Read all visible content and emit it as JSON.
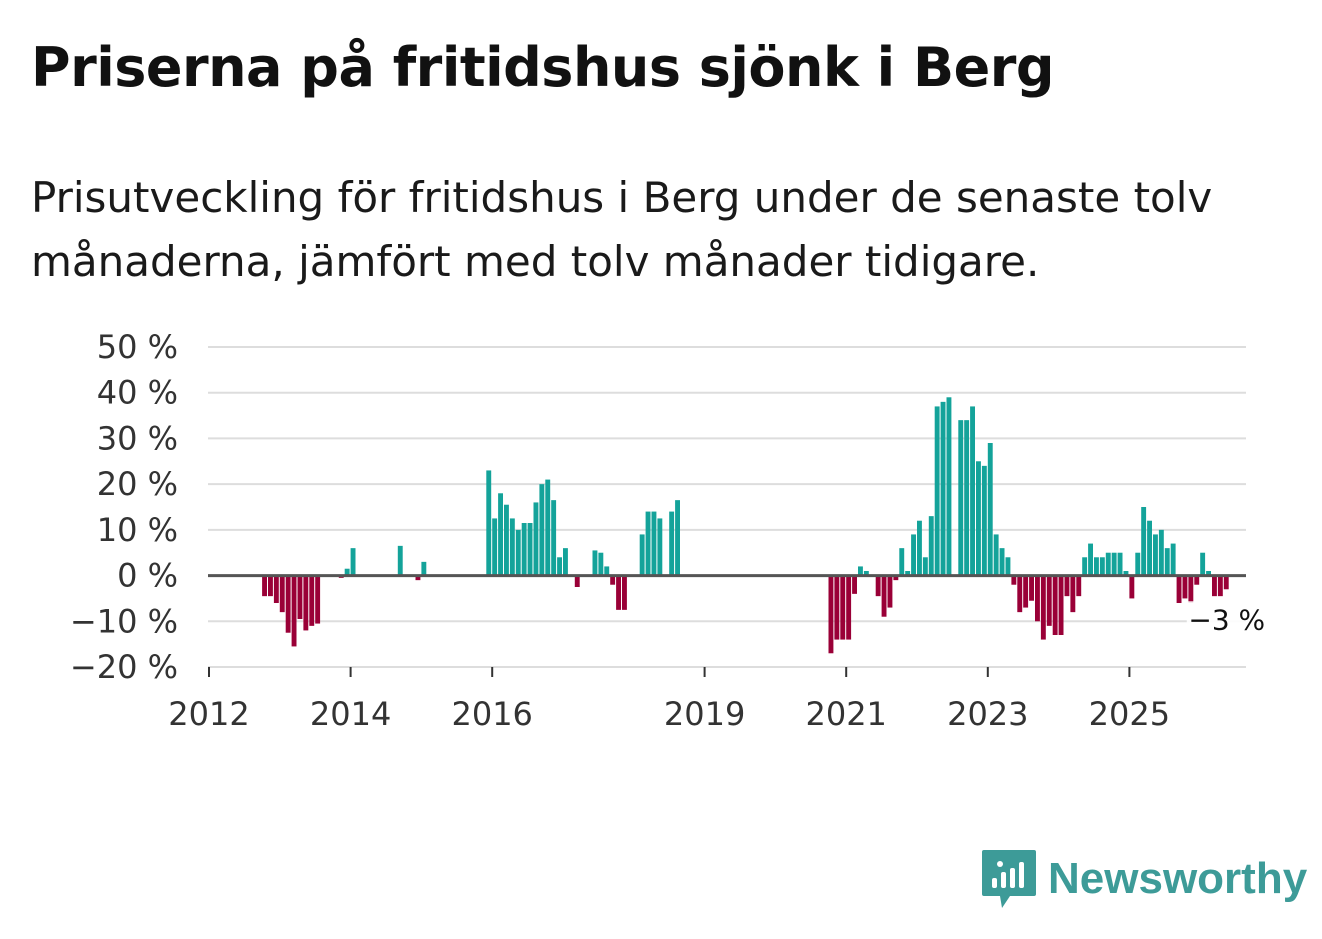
{
  "header": {
    "title": "Priserna på fritidshus sjönk i Berg",
    "subtitle": "Prisutveckling för fritidshus i Berg under de senaste tolv månaderna, jämfört med tolv månader tidigare."
  },
  "brand": {
    "name": "Newsworthy",
    "icon": "newsworthy-logo-icon"
  },
  "colors": {
    "positive": "#14a39a",
    "negative": "#9a0037",
    "grid": "#dddddd",
    "zero_line": "#555555"
  },
  "chart_data": {
    "type": "bar",
    "title": "Priserna på fritidshus sjönk i Berg",
    "ylabel": "",
    "xlabel": "",
    "ylim": [
      -20,
      50
    ],
    "y_ticks": [
      50,
      40,
      30,
      20,
      10,
      0,
      -10,
      -20
    ],
    "y_tick_labels": [
      "50 %",
      "40 %",
      "30 %",
      "20 %",
      "10 %",
      "0 %",
      "−10 %",
      "−20 %"
    ],
    "x_ticks": [
      {
        "label": "2012",
        "index": 0
      },
      {
        "label": "2014",
        "index": 24
      },
      {
        "label": "2016",
        "index": 48
      },
      {
        "label": "2019",
        "index": 84
      },
      {
        "label": "2021",
        "index": 108
      },
      {
        "label": "2023",
        "index": 132
      },
      {
        "label": "2025",
        "index": 156
      }
    ],
    "start": "2012-01",
    "frequency": "monthly",
    "values": [
      null,
      null,
      null,
      null,
      null,
      null,
      null,
      null,
      null,
      -4.5,
      -4.5,
      -6,
      -8,
      -12.5,
      -15.5,
      -9.5,
      -12,
      -11,
      -10.5,
      null,
      null,
      null,
      -0.5,
      1.5,
      6,
      null,
      null,
      null,
      null,
      null,
      null,
      null,
      6.5,
      null,
      null,
      -1,
      3,
      null,
      null,
      null,
      null,
      null,
      null,
      null,
      null,
      null,
      null,
      23,
      12.5,
      18,
      15.5,
      12.5,
      10,
      11.5,
      11.5,
      16,
      20,
      21,
      16.5,
      4,
      6,
      null,
      -2.5,
      null,
      null,
      5.5,
      5,
      2,
      -2,
      -7.5,
      -7.5,
      null,
      null,
      9,
      14,
      14,
      12.5,
      null,
      14,
      16.5,
      null,
      null,
      null,
      null,
      null,
      null,
      null,
      null,
      null,
      null,
      null,
      null,
      null,
      null,
      null,
      null,
      null,
      null,
      null,
      null,
      null,
      null,
      null,
      null,
      null,
      -17,
      -14,
      -14,
      -14,
      -4,
      2,
      1,
      null,
      -4.5,
      -9,
      -7,
      -1,
      6,
      1,
      9,
      12,
      4,
      13,
      37,
      38,
      39,
      null,
      34,
      34,
      37,
      25,
      24,
      29,
      9,
      6,
      4,
      -2,
      -8,
      -7,
      -5.5,
      -10,
      -14,
      -11,
      -13,
      -13,
      -4.5,
      -8,
      -4.5,
      4,
      7,
      4,
      4,
      5,
      5,
      5,
      1,
      -5,
      5,
      15,
      12,
      9,
      10,
      6,
      7,
      -6,
      -5,
      -6,
      -2,
      5,
      1,
      -4.5,
      -4.5,
      -3
    ],
    "end_label": "−3 %"
  }
}
